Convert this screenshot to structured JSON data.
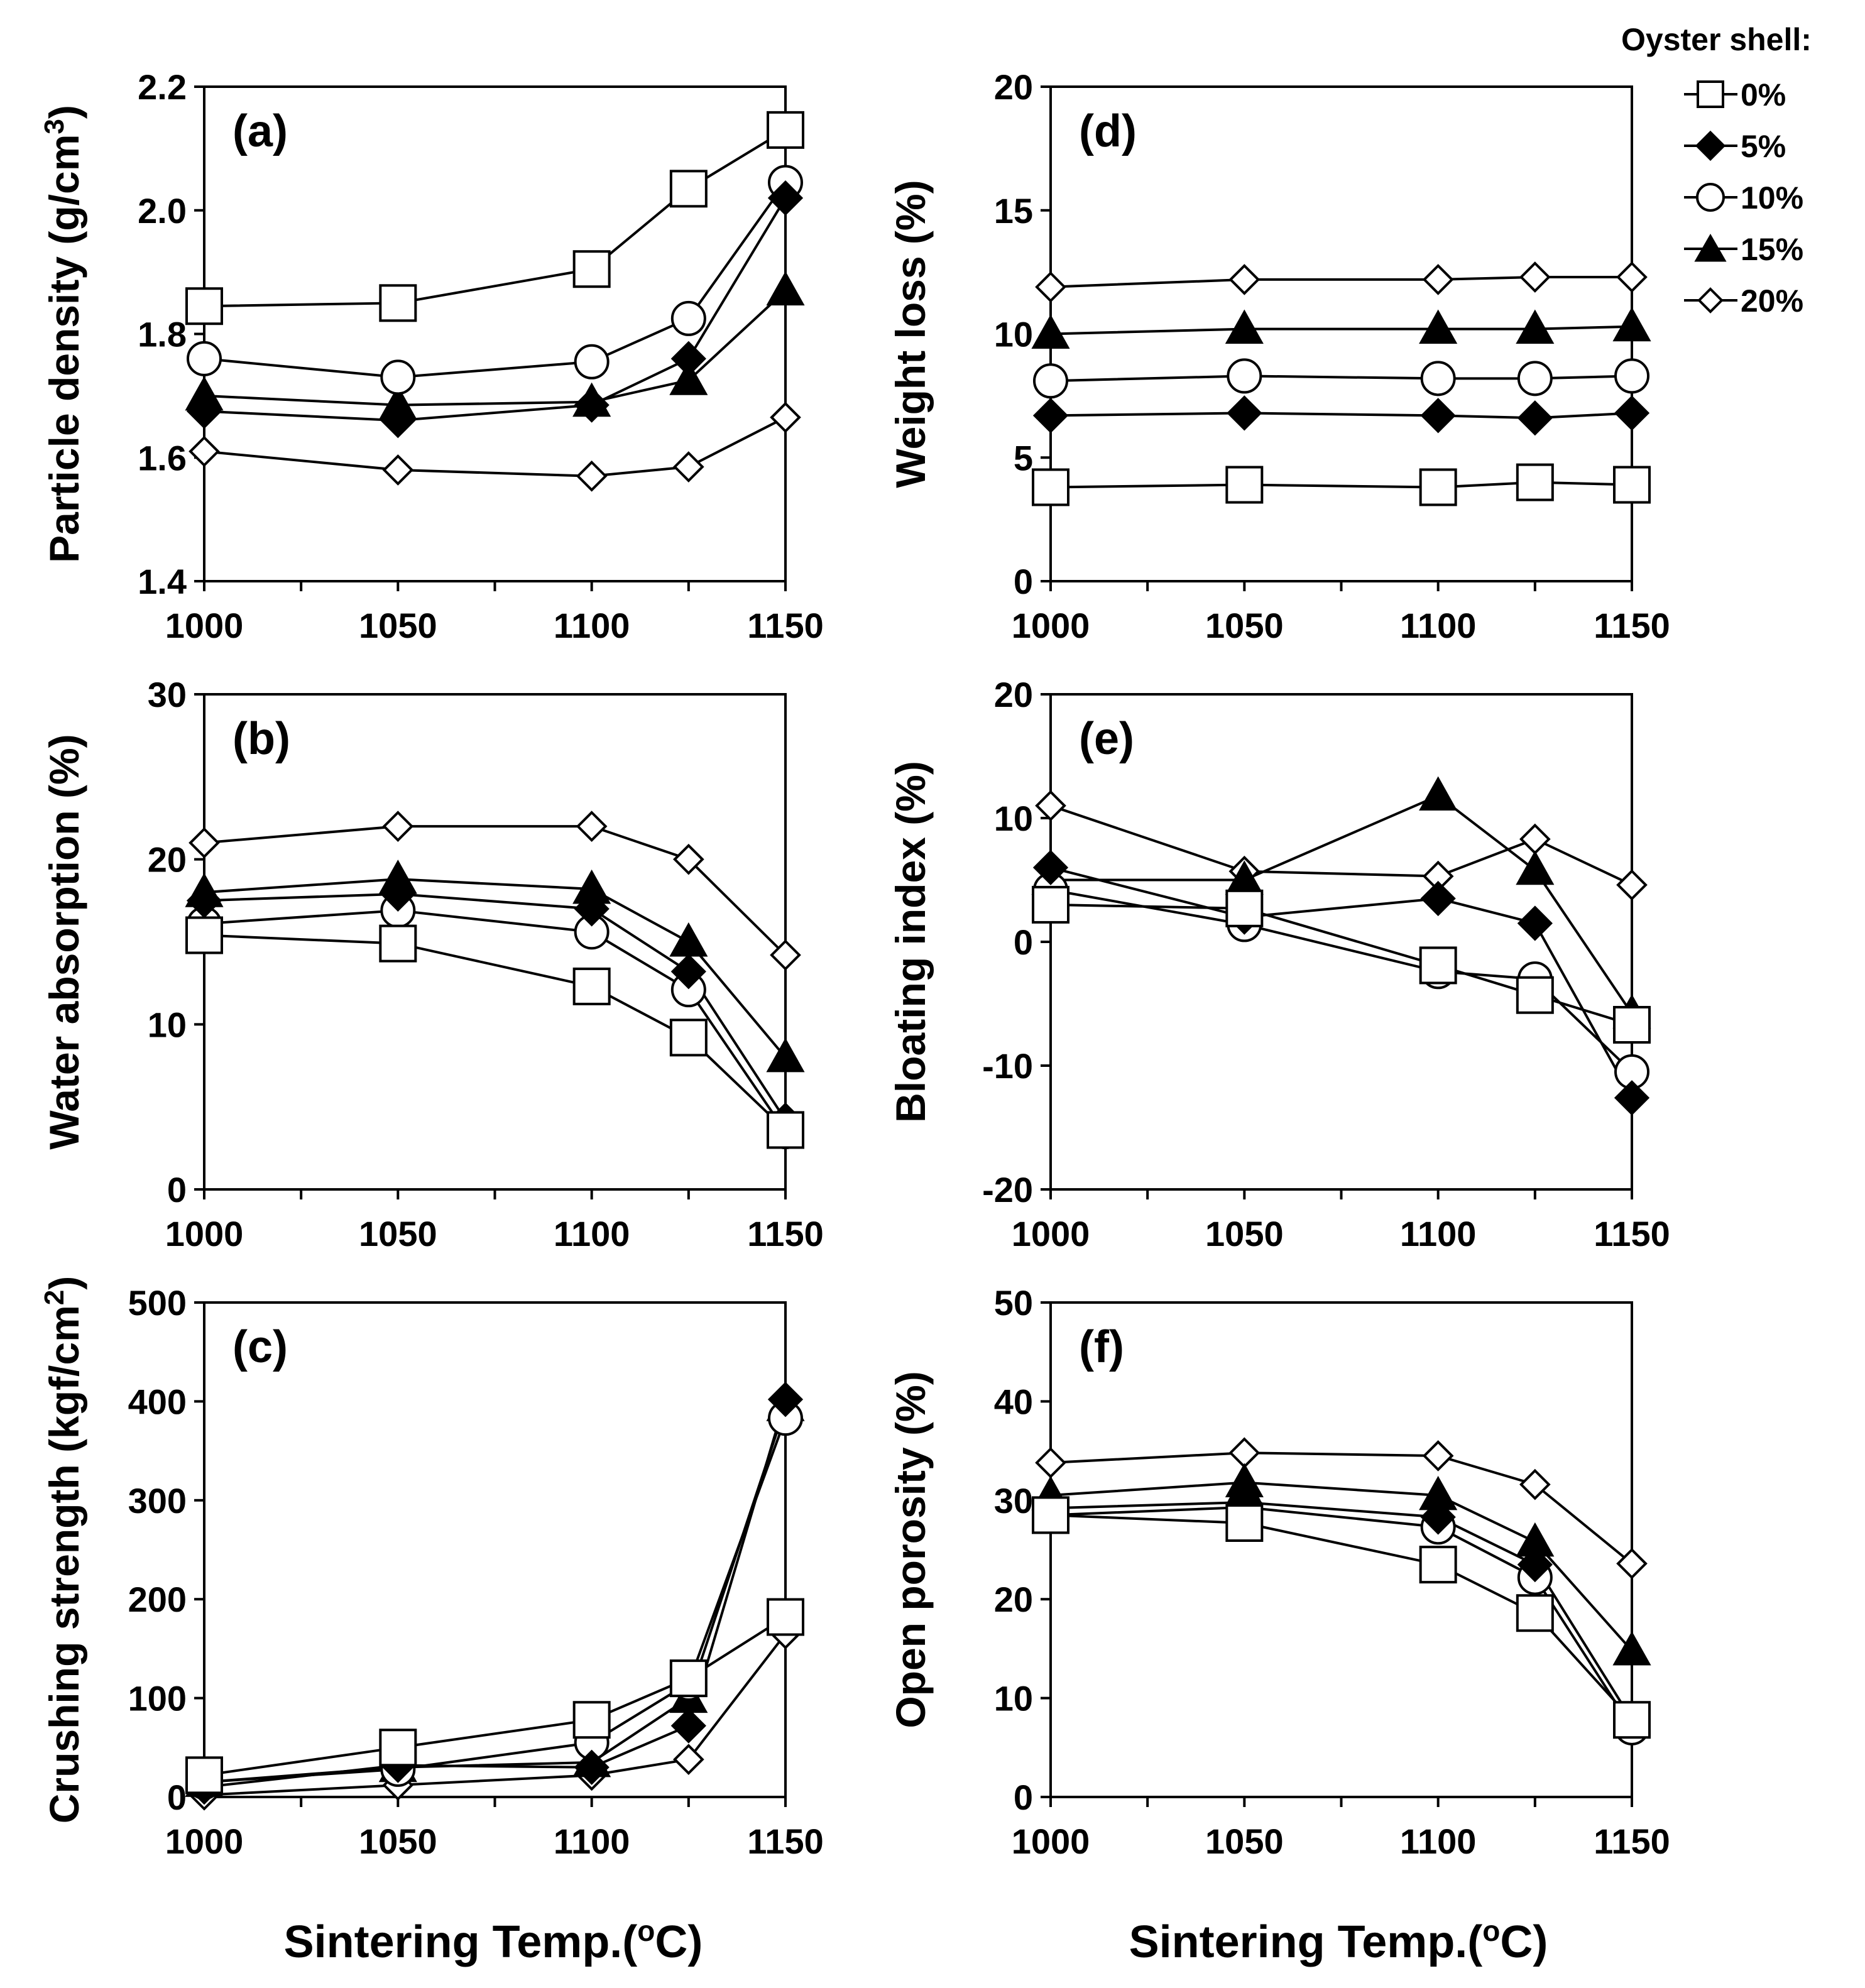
{
  "chart_data": [
    {
      "type": "line",
      "panel_label": "(a)",
      "ylabel_main": "Particle density (g/cm",
      "ylabel_sup": "3",
      "ylabel_tail": ")",
      "x": [
        1000,
        1050,
        1100,
        1125,
        1150
      ],
      "xticks": [
        "1000",
        "1050",
        "1100",
        "1150"
      ],
      "xtick_values": [
        1000,
        1050,
        1100,
        1150
      ],
      "xlim": [
        1000,
        1150
      ],
      "ylim": [
        1.4,
        2.2
      ],
      "yticks": [
        1.4,
        1.6,
        1.8,
        2.0,
        2.2
      ],
      "ytick_labels": [
        "1.4",
        "1.6",
        "1.8",
        "2.0",
        "2.2"
      ],
      "series": [
        {
          "name": "20%",
          "values": [
            1.61,
            1.58,
            1.57,
            1.585,
            1.665
          ]
        },
        {
          "name": "15%",
          "values": [
            1.7,
            1.685,
            1.69,
            1.725,
            1.87
          ]
        },
        {
          "name": "10%",
          "values": [
            1.76,
            1.73,
            1.755,
            1.825,
            2.045
          ]
        },
        {
          "name": "5%",
          "values": [
            1.675,
            1.66,
            1.685,
            1.76,
            2.02
          ]
        },
        {
          "name": "0%",
          "values": [
            1.845,
            1.85,
            1.905,
            2.035,
            2.13
          ]
        }
      ]
    },
    {
      "type": "line",
      "panel_label": "(b)",
      "ylabel_main": "Water absorption (%)",
      "ylabel_sup": "",
      "ylabel_tail": "",
      "x": [
        1000,
        1050,
        1100,
        1125,
        1150
      ],
      "xticks": [
        "1000",
        "1050",
        "1100",
        "1150"
      ],
      "xtick_values": [
        1000,
        1050,
        1100,
        1150
      ],
      "xlim": [
        1000,
        1150
      ],
      "ylim": [
        0,
        30
      ],
      "yticks": [
        0,
        10,
        20,
        30
      ],
      "ytick_labels": [
        "0",
        "10",
        "20",
        "30"
      ],
      "series": [
        {
          "name": "20%",
          "values": [
            21.0,
            22.0,
            22.0,
            20.0,
            14.2
          ]
        },
        {
          "name": "15%",
          "values": [
            18.0,
            18.8,
            18.2,
            15.0,
            8.0
          ]
        },
        {
          "name": "10%",
          "values": [
            16.1,
            16.9,
            15.6,
            12.1,
            3.5
          ]
        },
        {
          "name": "5%",
          "values": [
            17.5,
            17.9,
            17.0,
            13.2,
            4.2
          ]
        },
        {
          "name": "0%",
          "values": [
            15.4,
            14.9,
            12.3,
            9.2,
            3.6
          ]
        }
      ]
    },
    {
      "type": "line",
      "panel_label": "(c)",
      "ylabel_main": "Crushing strength (kgf/cm",
      "ylabel_sup": "2",
      "ylabel_tail": ")",
      "x": [
        1000,
        1050,
        1100,
        1125,
        1150
      ],
      "xticks": [
        "1000",
        "1050",
        "1100",
        "1150"
      ],
      "xtick_values": [
        1000,
        1050,
        1100,
        1150
      ],
      "xlim": [
        1000,
        1150
      ],
      "ylim": [
        0,
        500
      ],
      "yticks": [
        0,
        100,
        200,
        300,
        400,
        500
      ],
      "ytick_labels": [
        "0",
        "100",
        "200",
        "300",
        "400",
        "500"
      ],
      "series": [
        {
          "name": "20%",
          "values": [
            2,
            12,
            22,
            38,
            165
          ]
        },
        {
          "name": "15%",
          "values": [
            15,
            30,
            35,
            100,
            395
          ]
        },
        {
          "name": "10%",
          "values": [
            15,
            28,
            55,
            115,
            383
          ]
        },
        {
          "name": "5%",
          "values": [
            10,
            32,
            30,
            72,
            402
          ]
        },
        {
          "name": "0%",
          "values": [
            22,
            50,
            78,
            120,
            182
          ]
        }
      ]
    },
    {
      "type": "line",
      "panel_label": "(d)",
      "ylabel_main": "Weight loss (%)",
      "ylabel_sup": "",
      "ylabel_tail": "",
      "x": [
        1000,
        1050,
        1100,
        1125,
        1150
      ],
      "xticks": [
        "1000",
        "1050",
        "1100",
        "1150"
      ],
      "xtick_values": [
        1000,
        1050,
        1100,
        1150
      ],
      "xlim": [
        1000,
        1150
      ],
      "ylim": [
        0,
        20
      ],
      "yticks": [
        0,
        5,
        10,
        15,
        20
      ],
      "ytick_labels": [
        "0",
        "5",
        "10",
        "15",
        "20"
      ],
      "series": [
        {
          "name": "20%",
          "values": [
            11.9,
            12.2,
            12.2,
            12.3,
            12.3
          ]
        },
        {
          "name": "15%",
          "values": [
            10.0,
            10.2,
            10.2,
            10.2,
            10.3
          ]
        },
        {
          "name": "10%",
          "values": [
            8.1,
            8.3,
            8.2,
            8.2,
            8.3
          ]
        },
        {
          "name": "5%",
          "values": [
            6.7,
            6.8,
            6.7,
            6.6,
            6.8
          ]
        },
        {
          "name": "0%",
          "values": [
            3.8,
            3.9,
            3.8,
            4.0,
            3.9
          ]
        }
      ]
    },
    {
      "type": "line",
      "panel_label": "(e)",
      "ylabel_main": "Bloating index (%)",
      "ylabel_sup": "",
      "ylabel_tail": "",
      "x": [
        1000,
        1050,
        1100,
        1125,
        1150
      ],
      "xticks": [
        "1000",
        "1050",
        "1100",
        "1150"
      ],
      "xtick_values": [
        1000,
        1050,
        1100,
        1150
      ],
      "xlim": [
        1000,
        1150
      ],
      "ylim": [
        -20,
        20
      ],
      "yticks": [
        -20,
        -10,
        0,
        10,
        20
      ],
      "ytick_labels": [
        "-20",
        "-10",
        "0",
        "10",
        "20"
      ],
      "series": [
        {
          "name": "20%",
          "values": [
            11.0,
            5.7,
            5.3,
            8.3,
            4.6
          ]
        },
        {
          "name": "15%",
          "values": [
            5.0,
            5.0,
            11.8,
            5.8,
            -5.8
          ]
        },
        {
          "name": "10%",
          "values": [
            4.2,
            1.4,
            -2.4,
            -3.0,
            -10.5
          ]
        },
        {
          "name": "5%",
          "values": [
            6.0,
            2.0,
            3.5,
            1.5,
            -12.6
          ]
        },
        {
          "name": "0%",
          "values": [
            3.0,
            2.7,
            -1.9,
            -4.3,
            -6.7
          ]
        }
      ]
    },
    {
      "type": "line",
      "panel_label": "(f)",
      "ylabel_main": "Open porosity (%)",
      "ylabel_sup": "",
      "ylabel_tail": "",
      "x": [
        1000,
        1050,
        1100,
        1125,
        1150
      ],
      "xticks": [
        "1000",
        "1050",
        "1100",
        "1150"
      ],
      "xtick_values": [
        1000,
        1050,
        1100,
        1150
      ],
      "xlim": [
        1000,
        1150
      ],
      "ylim": [
        0,
        50
      ],
      "yticks": [
        0,
        10,
        20,
        30,
        40,
        50
      ],
      "ytick_labels": [
        "0",
        "10",
        "20",
        "30",
        "40",
        "50"
      ],
      "series": [
        {
          "name": "20%",
          "values": [
            33.8,
            34.8,
            34.5,
            31.6,
            23.6
          ]
        },
        {
          "name": "15%",
          "values": [
            30.5,
            31.8,
            30.5,
            25.8,
            14.8
          ]
        },
        {
          "name": "10%",
          "values": [
            28.5,
            29.3,
            27.3,
            22.2,
            7.0
          ]
        },
        {
          "name": "5%",
          "values": [
            29.2,
            29.8,
            28.3,
            23.5,
            7.8
          ]
        },
        {
          "name": "0%",
          "values": [
            28.5,
            27.7,
            23.5,
            18.6,
            7.8
          ]
        }
      ]
    }
  ],
  "legend": {
    "title": "Oyster shell:",
    "entries": [
      {
        "name": "0%",
        "label": "0%"
      },
      {
        "name": "5%",
        "label": "5%"
      },
      {
        "name": "10%",
        "label": "10%"
      },
      {
        "name": "15%",
        "label": "15%"
      },
      {
        "name": "20%",
        "label": "20%"
      }
    ]
  },
  "xlabel": {
    "main": "Sintering Temp.(",
    "sup": "o",
    "tail": "C)"
  }
}
